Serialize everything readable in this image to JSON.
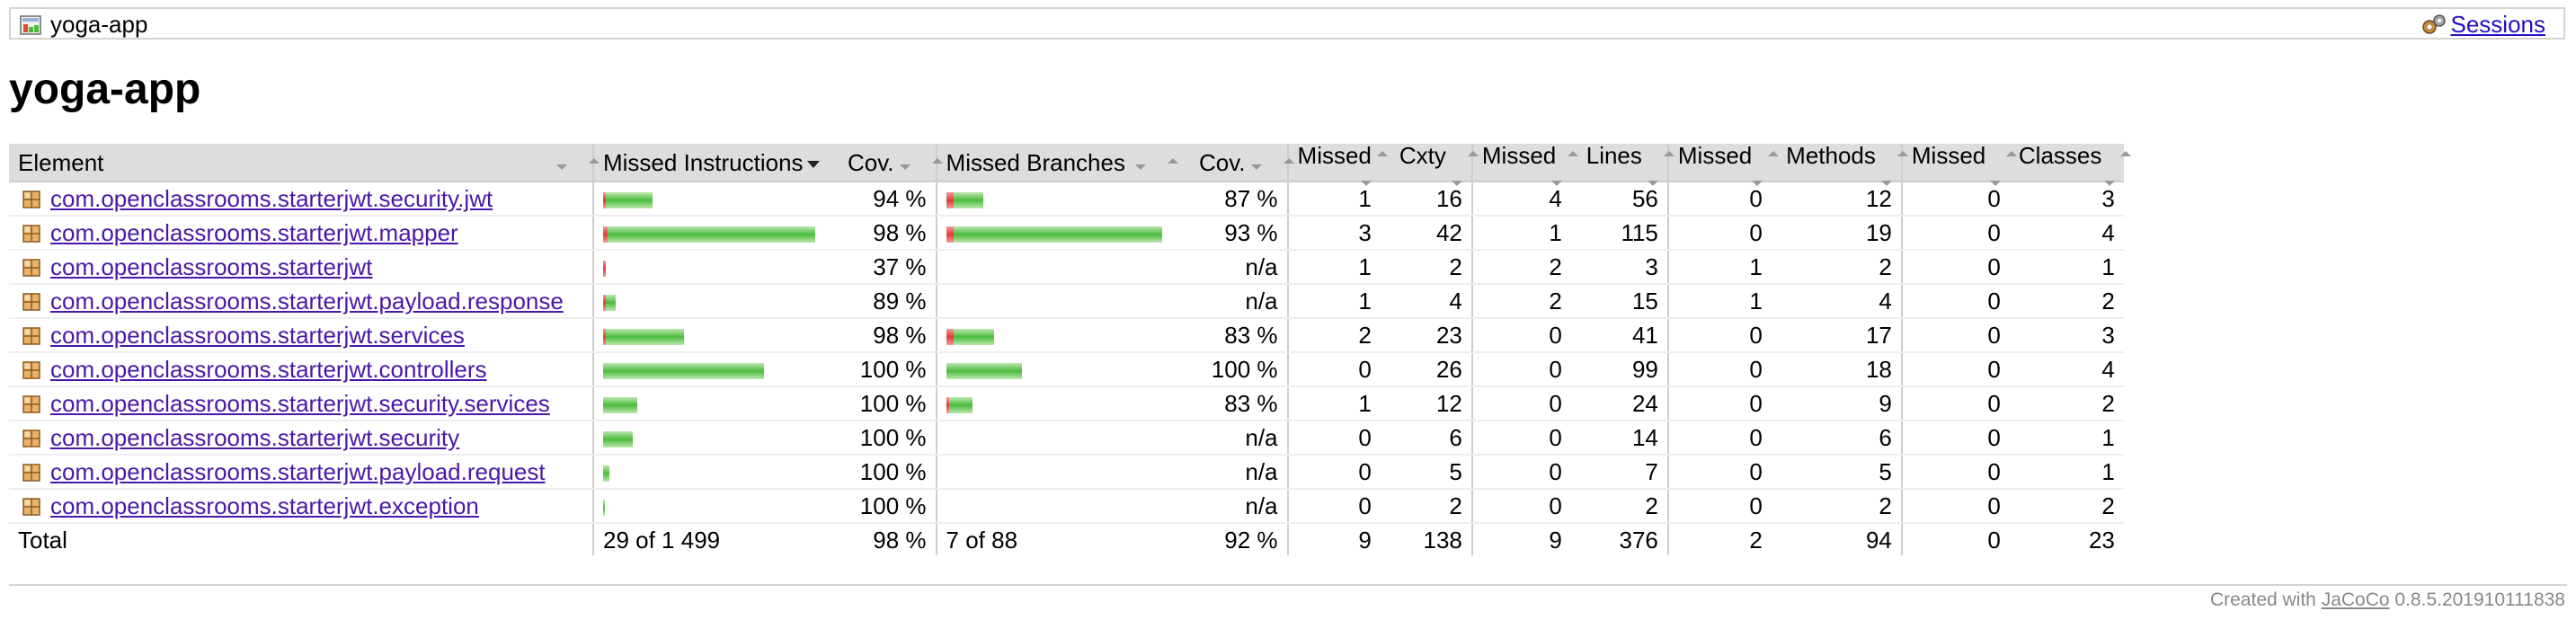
{
  "breadcrumb": {
    "title": "yoga-app",
    "sessions_label": "Sessions"
  },
  "page_title": "yoga-app",
  "table": {
    "headers": {
      "element": "Element",
      "missed_instructions": "Missed Instructions",
      "instr_cov": "Cov.",
      "missed_branches": "Missed Branches",
      "branch_cov": "Cov.",
      "missed_cxty": "Missed",
      "cxty": "Cxty",
      "missed_lines": "Missed",
      "lines": "Lines",
      "missed_methods": "Missed",
      "methods": "Methods",
      "missed_classes": "Missed",
      "classes": "Classes"
    },
    "rows": [
      {
        "name": "com.openclassrooms.starterjwt.security.jwt",
        "instr_missed_frac": 0.013,
        "instr_bar_rel": 0.235,
        "instr_cov": "94 %",
        "branch_missed_frac": 0.033,
        "branch_bar_rel": 0.17,
        "branch_cov": "87 %",
        "missed_cxty": "1",
        "cxty": "16",
        "missed_lines": "4",
        "lines": "56",
        "missed_methods": "0",
        "methods": "12",
        "missed_classes": "0",
        "classes": "3"
      },
      {
        "name": "com.openclassrooms.starterjwt.mapper",
        "instr_missed_frac": 0.02,
        "instr_bar_rel": 1.0,
        "instr_cov": "98 %",
        "branch_missed_frac": 0.034,
        "branch_bar_rel": 1.0,
        "branch_cov": "93 %",
        "missed_cxty": "3",
        "cxty": "42",
        "missed_lines": "1",
        "lines": "115",
        "missed_methods": "0",
        "methods": "19",
        "missed_classes": "0",
        "classes": "4"
      },
      {
        "name": "com.openclassrooms.starterjwt",
        "instr_missed_frac": 0.009,
        "instr_bar_rel": 0.0,
        "instr_cov": "37 %",
        "branch_missed_frac": 0,
        "branch_bar_rel": 0,
        "branch_cov": "n/a",
        "missed_cxty": "1",
        "cxty": "2",
        "missed_lines": "2",
        "lines": "3",
        "missed_methods": "1",
        "methods": "2",
        "missed_classes": "0",
        "classes": "1"
      },
      {
        "name": "com.openclassrooms.starterjwt.payload.response",
        "instr_missed_frac": 0.002,
        "instr_bar_rel": 0.06,
        "instr_cov": "89 %",
        "branch_missed_frac": 0,
        "branch_bar_rel": 0,
        "branch_cov": "n/a",
        "missed_cxty": "1",
        "cxty": "4",
        "missed_lines": "2",
        "lines": "15",
        "missed_methods": "1",
        "methods": "4",
        "missed_classes": "0",
        "classes": "2"
      },
      {
        "name": "com.openclassrooms.starterjwt.services",
        "instr_missed_frac": 0.004,
        "instr_bar_rel": 0.38,
        "instr_cov": "98 %",
        "branch_missed_frac": 0.034,
        "branch_bar_rel": 0.22,
        "branch_cov": "83 %",
        "missed_cxty": "2",
        "cxty": "23",
        "missed_lines": "0",
        "lines": "41",
        "missed_methods": "0",
        "methods": "17",
        "missed_classes": "0",
        "classes": "3"
      },
      {
        "name": "com.openclassrooms.starterjwt.controllers",
        "instr_missed_frac": 0,
        "instr_bar_rel": 0.76,
        "instr_cov": "100 %",
        "branch_missed_frac": 0,
        "branch_bar_rel": 0.35,
        "branch_cov": "100 %",
        "missed_cxty": "0",
        "cxty": "26",
        "missed_lines": "0",
        "lines": "99",
        "missed_methods": "0",
        "methods": "18",
        "missed_classes": "0",
        "classes": "4"
      },
      {
        "name": "com.openclassrooms.starterjwt.security.services",
        "instr_missed_frac": 0,
        "instr_bar_rel": 0.16,
        "instr_cov": "100 %",
        "branch_missed_frac": 0.011,
        "branch_bar_rel": 0.12,
        "branch_cov": "83 %",
        "missed_cxty": "1",
        "cxty": "12",
        "missed_lines": "0",
        "lines": "24",
        "missed_methods": "0",
        "methods": "9",
        "missed_classes": "0",
        "classes": "2"
      },
      {
        "name": "com.openclassrooms.starterjwt.security",
        "instr_missed_frac": 0,
        "instr_bar_rel": 0.14,
        "instr_cov": "100 %",
        "branch_missed_frac": 0,
        "branch_bar_rel": 0,
        "branch_cov": "n/a",
        "missed_cxty": "0",
        "cxty": "6",
        "missed_lines": "0",
        "lines": "14",
        "missed_methods": "0",
        "methods": "6",
        "missed_classes": "0",
        "classes": "1"
      },
      {
        "name": "com.openclassrooms.starterjwt.payload.request",
        "instr_missed_frac": 0,
        "instr_bar_rel": 0.03,
        "instr_cov": "100 %",
        "branch_missed_frac": 0,
        "branch_bar_rel": 0,
        "branch_cov": "n/a",
        "missed_cxty": "0",
        "cxty": "5",
        "missed_lines": "0",
        "lines": "7",
        "missed_methods": "0",
        "methods": "5",
        "missed_classes": "0",
        "classes": "1"
      },
      {
        "name": "com.openclassrooms.starterjwt.exception",
        "instr_missed_frac": 0,
        "instr_bar_rel": 0.01,
        "instr_cov": "100 %",
        "branch_missed_frac": 0,
        "branch_bar_rel": 0,
        "branch_cov": "n/a",
        "missed_cxty": "0",
        "cxty": "2",
        "missed_lines": "0",
        "lines": "2",
        "missed_methods": "0",
        "methods": "2",
        "missed_classes": "0",
        "classes": "2"
      }
    ],
    "total": {
      "label": "Total",
      "missed_instructions": "29 of 1 499",
      "instr_cov": "98 %",
      "missed_branches": "7 of 88",
      "branch_cov": "92 %",
      "missed_cxty": "9",
      "cxty": "138",
      "missed_lines": "9",
      "lines": "376",
      "missed_methods": "2",
      "methods": "94",
      "missed_classes": "0",
      "classes": "23"
    }
  },
  "footer": {
    "prefix": "Created with ",
    "link": "JaCoCo",
    "version": " 0.8.5.201910111838"
  },
  "colors": {
    "link": "#4a18a8",
    "sessions_link": "#2210c8",
    "bar_green": "#4cbb3d",
    "bar_red": "#e23a3a",
    "header_bg": "#dddddd"
  },
  "icons": {
    "report": "report-icon",
    "sessions": "sessions-icon",
    "package": "package-icon"
  }
}
